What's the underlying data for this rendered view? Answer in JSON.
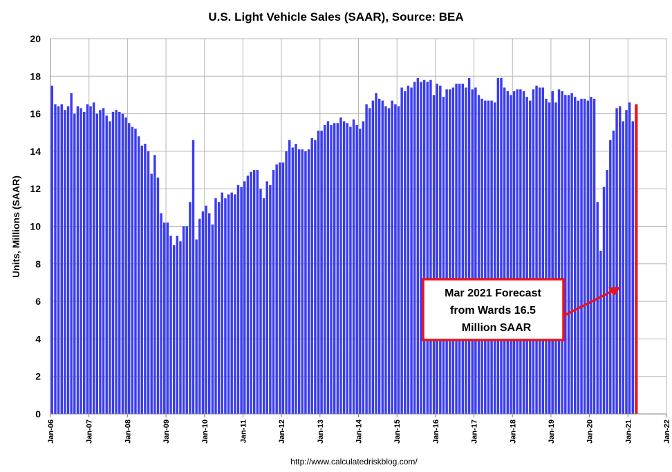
{
  "colors": {
    "bar": "#3a3cf0",
    "highlight": "#e8141c",
    "grid": "#b5b5b5",
    "callout_border": "#e8141c"
  },
  "chart_data": {
    "type": "bar",
    "title": "U.S. Light Vehicle Sales (SAAR), Source: BEA",
    "ylabel": "Units, Millions (SAAR)",
    "xlabel": "",
    "ylim": [
      0,
      20
    ],
    "yticks": [
      0,
      2,
      4,
      6,
      8,
      10,
      12,
      14,
      16,
      18,
      20
    ],
    "xticks": [
      "Jan-06",
      "Jan-07",
      "Jan-08",
      "Jan-09",
      "Jan-10",
      "Jan-11",
      "Jan-12",
      "Jan-13",
      "Jan-14",
      "Jan-15",
      "Jan-16",
      "Jan-17",
      "Jan-18",
      "Jan-19",
      "Jan-20",
      "Jan-21",
      "Jan-22"
    ],
    "start_month": "Jan-06",
    "grid": true,
    "legend": "none",
    "series": [
      {
        "values": [
          17.5,
          16.5,
          16.4,
          16.5,
          16.2,
          16.4,
          17.1,
          16.0,
          16.4,
          16.3,
          16.1,
          16.5,
          16.4,
          16.6,
          16.0,
          16.2,
          16.3,
          15.9,
          15.6,
          16.1,
          16.2,
          16.1,
          16.0,
          15.8,
          15.5,
          15.3,
          15.2,
          14.8,
          14.3,
          14.4,
          14.0,
          12.8,
          13.8,
          12.6,
          10.7,
          10.2,
          10.2,
          9.5,
          9.0,
          9.5,
          9.2,
          10.0,
          10.0,
          11.3,
          14.6,
          9.3,
          10.4,
          10.8,
          11.1,
          10.7,
          10.1,
          11.5,
          11.3,
          11.8,
          11.5,
          11.7,
          11.8,
          11.7,
          12.2,
          12.1,
          12.4,
          12.7,
          12.9,
          13.0,
          13.0,
          12.0,
          11.5,
          12.4,
          12.2,
          13.0,
          13.3,
          13.4,
          13.4,
          14.0,
          14.6,
          14.2,
          14.4,
          14.1,
          14.1,
          14.0,
          14.1,
          14.7,
          14.6,
          15.1,
          15.1,
          15.4,
          15.6,
          15.4,
          15.5,
          15.5,
          15.8,
          15.6,
          15.5,
          15.3,
          15.7,
          15.4,
          15.2,
          15.6,
          16.5,
          16.3,
          16.7,
          17.1,
          16.8,
          16.7,
          16.4,
          16.3,
          16.7,
          16.5,
          16.4,
          17.4,
          17.2,
          17.5,
          17.4,
          17.7,
          17.9,
          17.7,
          17.8,
          17.7,
          17.8,
          17.0,
          17.6,
          17.5,
          16.9,
          17.3,
          17.3,
          17.4,
          17.6,
          17.6,
          17.6,
          17.4,
          17.9,
          17.3,
          17.4,
          17.0,
          16.8,
          16.7,
          16.7,
          16.7,
          16.6,
          17.9,
          17.9,
          17.4,
          17.2,
          17.0,
          17.2,
          17.3,
          17.3,
          17.2,
          16.9,
          16.7,
          17.3,
          17.5,
          17.4,
          17.4,
          16.8,
          16.6,
          17.2,
          16.6,
          17.3,
          17.2,
          17.0,
          17.0,
          17.1,
          16.9,
          16.7,
          16.8,
          16.8,
          16.7,
          16.9,
          16.8,
          11.3,
          8.7,
          12.1,
          13.0,
          14.6,
          15.1,
          16.3,
          16.4,
          15.6,
          16.2,
          16.6,
          15.6,
          16.5
        ]
      }
    ],
    "highlight_last": true,
    "annotation": {
      "lines": [
        "Mar 2021 Forecast",
        "from Wards 16.5",
        "Million SAAR"
      ]
    }
  },
  "source_text": "http://www.calculatedriskblog.com/"
}
